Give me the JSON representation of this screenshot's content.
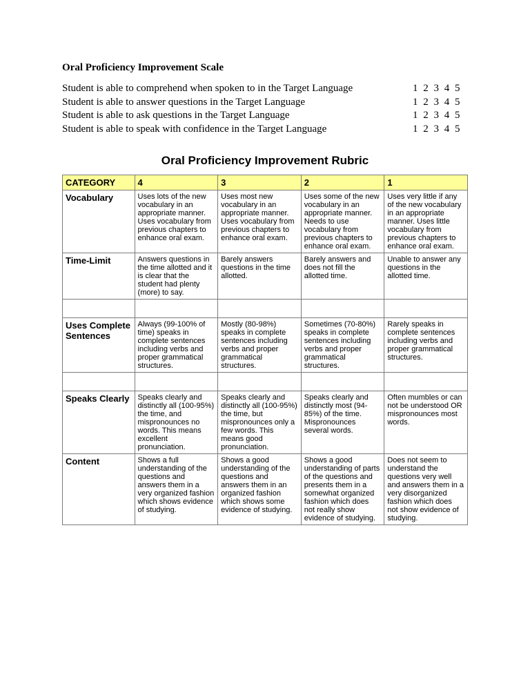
{
  "title": "Oral Proficiency Improvement Scale",
  "scale_items": [
    "Student is able to comprehend when spoken to in the Target Language",
    "Student is able to answer questions in the Target Language",
    "Student is able to ask questions in the Target Language",
    "Student is able to speak with confidence in the Target Language"
  ],
  "scale_numbers": "1 2 3 4 5",
  "rubric_title": "Oral Proficiency Improvement Rubric",
  "headers": {
    "cat": "CATEGORY",
    "c4": "4",
    "c3": "3",
    "c2": "2",
    "c1": "1"
  },
  "rows": [
    {
      "cat": "Vocabulary",
      "c4": "Uses lots of the new vocabulary in an appropriate manner. Uses vocabulary from previous chapters to enhance oral exam.",
      "c3": "Uses most new vocabulary in an appropriate manner. Uses vocabulary from previous chapters to enhance oral exam.",
      "c2": "Uses some of the new vocabulary in an appropriate manner. Needs to use vocabulary from previous chapters to enhance oral exam.",
      "c1": "Uses very little if any of the new vocabulary in an appropriate manner. Uses little vocabulary from previous chapters to enhance oral exam."
    },
    {
      "cat": "Time-Limit",
      "c4": "Answers questions in the time allotted and it is clear that the student had plenty (more) to say.",
      "c3": "Barely answers questions in the time allotted.",
      "c2": "Barely answers and does not fill the allotted time.",
      "c1": "Unable to answer any questions in the allotted time."
    },
    {
      "cat": "Uses Complete Sentences",
      "c4": "Always (99-100% of time) speaks in complete sentences including verbs and proper grammatical structures.",
      "c3": "Mostly (80-98%) speaks in complete sentences including verbs and proper grammatical structures.",
      "c2": "Sometimes (70-80%) speaks in complete sentences including verbs and proper grammatical structures.",
      "c1": "Rarely speaks in complete sentences including verbs and proper grammatical structures."
    },
    {
      "cat": "Speaks Clearly",
      "c4": "Speaks clearly and distinctly all (100-95%) the time, and mispronounces no words. This means excellent pronunciation.",
      "c3": "Speaks clearly and distinctly all (100-95%) the time, but mispronounces only a few words. This means good pronunciation.",
      "c2": "Speaks clearly and distinctly most (94-85%) of the time. Mispronounces several words.",
      "c1": "Often mumbles or can not be understood OR mispronounces most words."
    },
    {
      "cat": "Content",
      "c4": "Shows a full understanding of the questions and answers them in a very organized fashion which shows evidence of studying.",
      "c3": "Shows a good understanding of the questions and answers them in an organized fashion which shows some evidence of studying.",
      "c2": "Shows a good understanding of parts of the questions and presents them in a somewhat organized fashion which does not really show evidence of studying.",
      "c1": "Does not seem to understand the questions very well and answers them in a very disorganized fashion which does not show evidence of studying."
    }
  ]
}
